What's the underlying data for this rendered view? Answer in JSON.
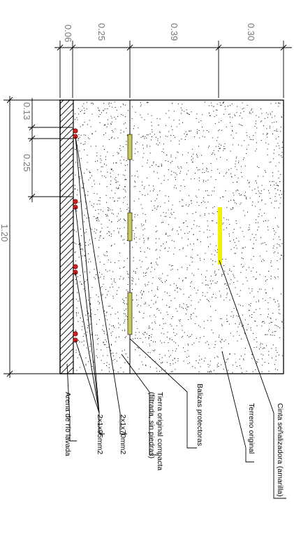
{
  "colors": {
    "line": "#000000",
    "dimension": "#777777",
    "warning_tape": "#f2f200",
    "protective_slab": "#c9c95a",
    "cable": "#d42020",
    "hatch": "#000000"
  },
  "depth_dimensions": {
    "d1": "0.06",
    "d2": "0.25",
    "d3": "0.39",
    "d4": "0.30"
  },
  "spacing_dimensions": {
    "total": "1.20",
    "top_gap": "0.13",
    "spacing": "0.25"
  },
  "labels": {
    "warning_tape": "Cinta señalizadora (amarilla)",
    "original_ground": "Terreno original",
    "protective_slabs": "Balizas protectoras",
    "compact_soil_line1": "Tierra original compacta",
    "compact_soil_line2": "(filtrada, sin piedras)",
    "cable_70": "2x1x70mm2",
    "cable_95": "2x1x95mm2",
    "washed_sand": "Arena de río lavada"
  }
}
